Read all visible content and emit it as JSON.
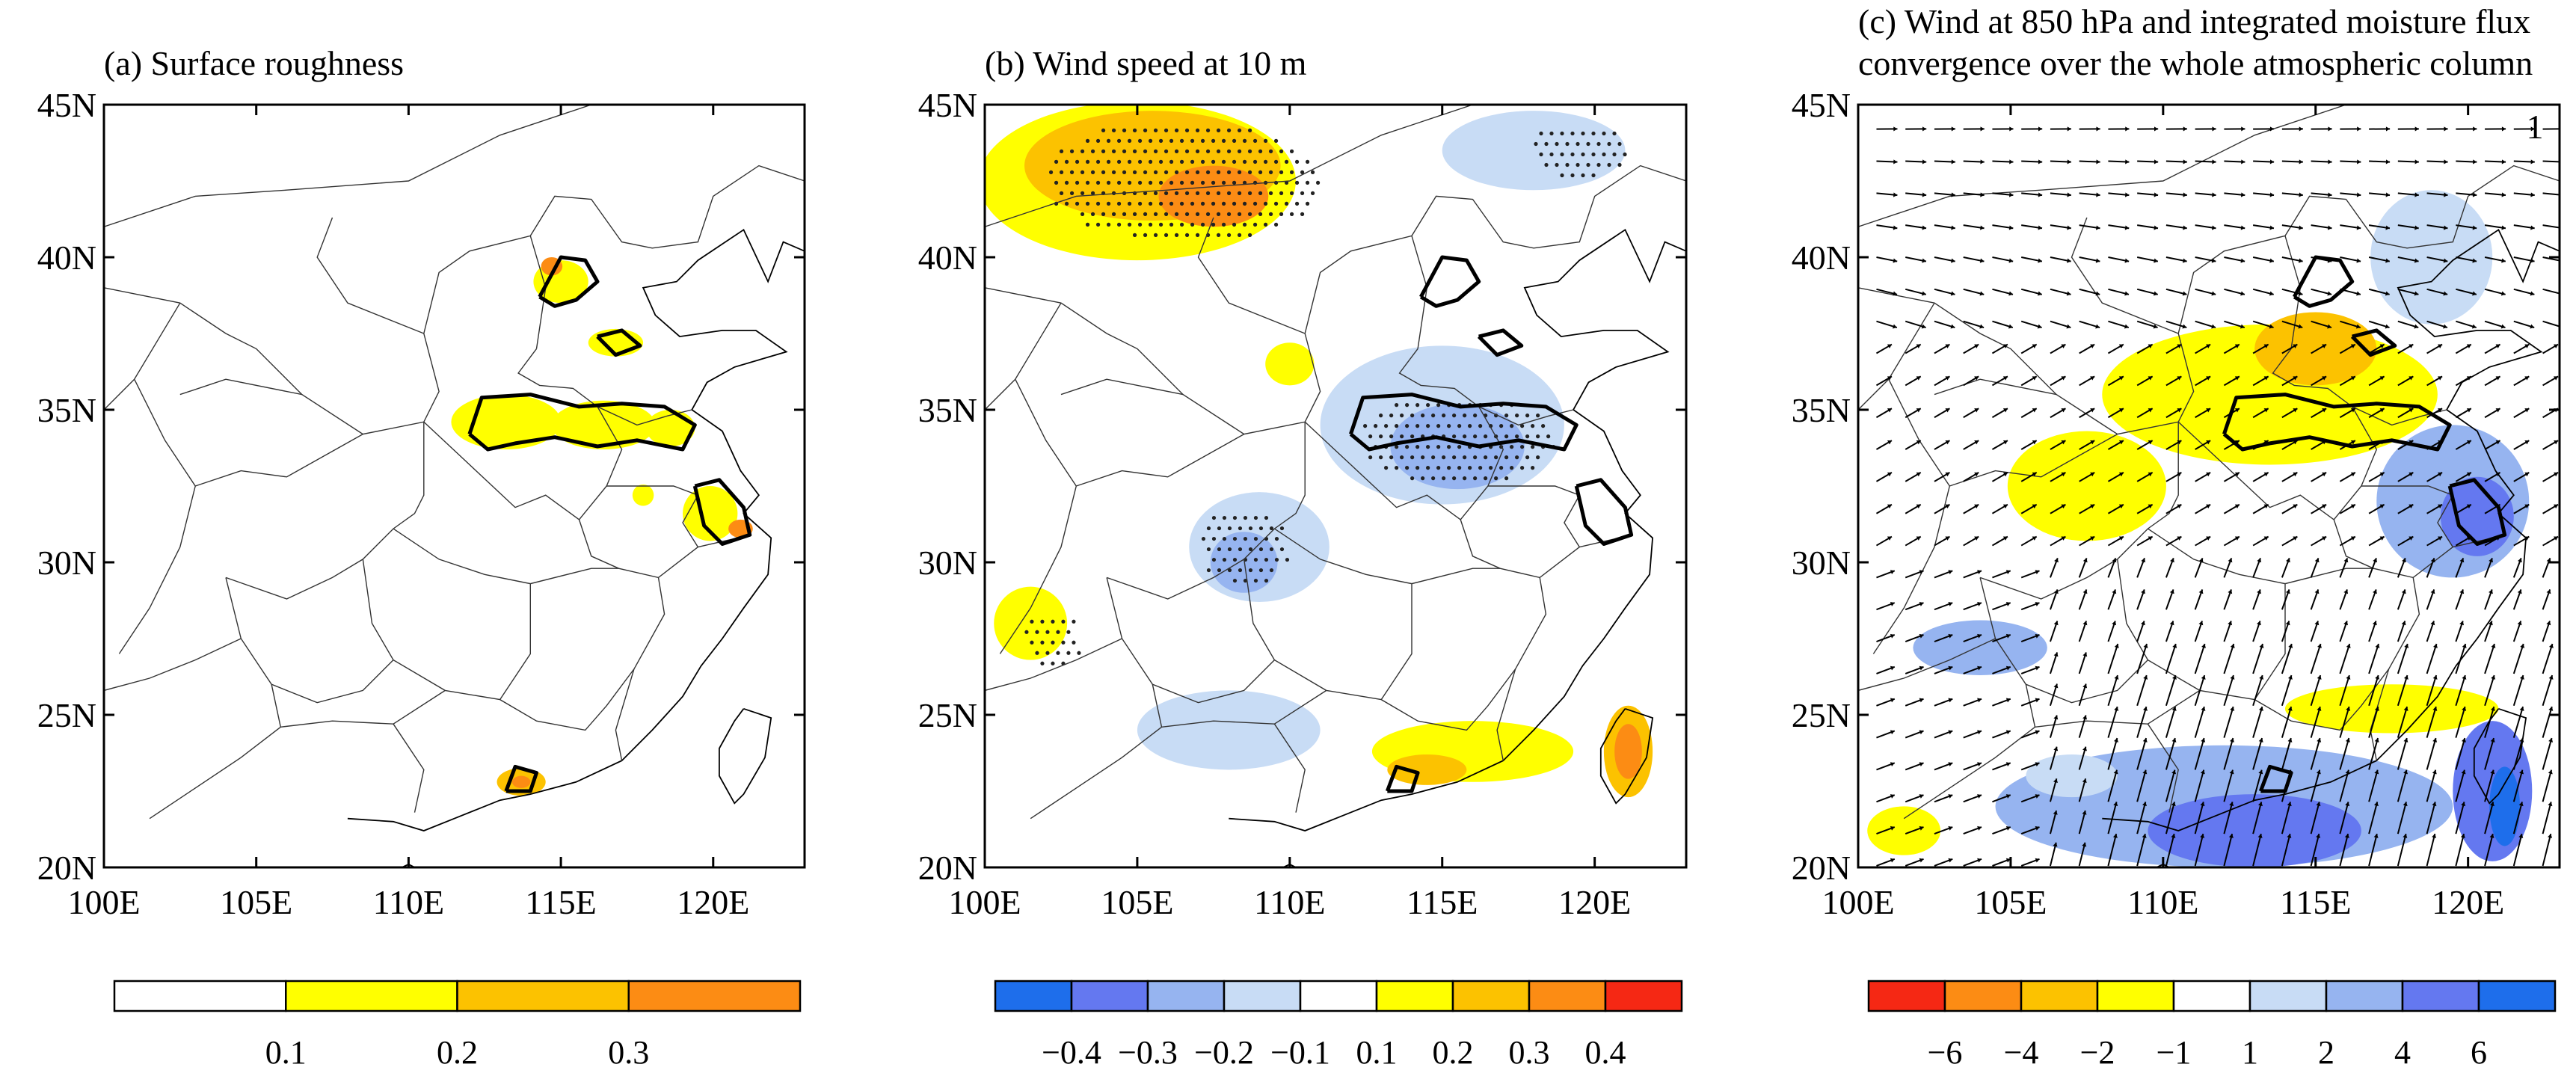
{
  "chart_data": [
    {
      "panel": "a",
      "type": "heatmap",
      "title": "(a) Surface roughness",
      "xlim": [
        100,
        123
      ],
      "ylim": [
        20,
        45
      ],
      "xticks": [
        "100E",
        "105E",
        "110E",
        "115E",
        "120E"
      ],
      "yticks": [
        "20N",
        "25N",
        "30N",
        "35N",
        "40N",
        "45N"
      ],
      "colorbar": {
        "labels": [
          "0.1",
          "0.2",
          "0.3"
        ],
        "levels": [
          0.1,
          0.2,
          0.3
        ],
        "colors": [
          "#ffffff",
          "#ffff00",
          "#fcc200",
          "#fc8c14"
        ]
      },
      "regions": [
        {
          "lon": 115,
          "lat": 39.2,
          "rx": 0.9,
          "ry": 0.7,
          "level": 1
        },
        {
          "lon": 114.7,
          "lat": 39.7,
          "rx": 0.35,
          "ry": 0.3,
          "level": 3
        },
        {
          "lon": 116.8,
          "lat": 37.2,
          "rx": 0.9,
          "ry": 0.45,
          "level": 1
        },
        {
          "lon": 113.2,
          "lat": 34.6,
          "rx": 1.8,
          "ry": 0.9,
          "level": 1
        },
        {
          "lon": 116.4,
          "lat": 34.5,
          "rx": 1.7,
          "ry": 0.8,
          "level": 1
        },
        {
          "lon": 118.6,
          "lat": 34.4,
          "rx": 0.8,
          "ry": 0.6,
          "level": 1
        },
        {
          "lon": 119.9,
          "lat": 31.6,
          "rx": 0.9,
          "ry": 0.9,
          "level": 1
        },
        {
          "lon": 120.9,
          "lat": 31.1,
          "rx": 0.4,
          "ry": 0.3,
          "level": 3
        },
        {
          "lon": 117.7,
          "lat": 32.2,
          "rx": 0.35,
          "ry": 0.35,
          "level": 1
        },
        {
          "lon": 113.7,
          "lat": 22.8,
          "rx": 0.8,
          "ry": 0.45,
          "level": 2
        },
        {
          "lon": 113.7,
          "lat": 22.8,
          "rx": 0.3,
          "ry": 0.2,
          "level": 3
        }
      ]
    },
    {
      "panel": "b",
      "type": "heatmap",
      "title": "(b) Wind speed at 10 m",
      "xlim": [
        100,
        123
      ],
      "ylim": [
        20,
        45
      ],
      "xticks": [
        "100E",
        "105E",
        "110E",
        "115E",
        "120E"
      ],
      "yticks": [
        "20N",
        "25N",
        "30N",
        "35N",
        "40N",
        "45N"
      ],
      "colorbar": {
        "labels": [
          "−0.4",
          "−0.3",
          "−0.2",
          "−0.1",
          "0.1",
          "0.2",
          "0.3",
          "0.4"
        ],
        "levels": [
          -0.4,
          -0.3,
          -0.2,
          -0.1,
          0.1,
          0.2,
          0.3,
          0.4
        ],
        "colors": [
          "#1e6eeb",
          "#6478f0",
          "#96b4f0",
          "#c8dcf5",
          "#ffffff",
          "#ffff00",
          "#fcc200",
          "#fc8c14",
          "#f52814"
        ]
      },
      "regions": [
        {
          "lon": 105,
          "lat": 42.5,
          "rx": 5.2,
          "ry": 2.6,
          "level": 1
        },
        {
          "lon": 105.5,
          "lat": 43,
          "rx": 4.2,
          "ry": 1.8,
          "level": 2
        },
        {
          "lon": 107.5,
          "lat": 42,
          "rx": 1.8,
          "ry": 1.0,
          "level": 3
        },
        {
          "lon": 118,
          "lat": 43.5,
          "rx": 3.0,
          "ry": 1.3,
          "level": -1
        },
        {
          "lon": 115,
          "lat": 34.5,
          "rx": 4.0,
          "ry": 2.6,
          "level": -1
        },
        {
          "lon": 115.5,
          "lat": 33.8,
          "rx": 2.2,
          "ry": 1.4,
          "level": -2
        },
        {
          "lon": 109,
          "lat": 30.5,
          "rx": 2.3,
          "ry": 1.8,
          "level": -1
        },
        {
          "lon": 108.5,
          "lat": 30,
          "rx": 1.1,
          "ry": 1.0,
          "level": -2
        },
        {
          "lon": 108,
          "lat": 24.5,
          "rx": 3.0,
          "ry": 1.3,
          "level": -1
        },
        {
          "lon": 116,
          "lat": 23.8,
          "rx": 3.3,
          "ry": 1.0,
          "level": 1
        },
        {
          "lon": 114.5,
          "lat": 23.2,
          "rx": 1.3,
          "ry": 0.5,
          "level": 2
        },
        {
          "lon": 121.1,
          "lat": 23.8,
          "rx": 0.8,
          "ry": 1.5,
          "level": 2
        },
        {
          "lon": 121.1,
          "lat": 23.8,
          "rx": 0.45,
          "ry": 0.9,
          "level": 3
        },
        {
          "lon": 101.5,
          "lat": 28,
          "rx": 1.2,
          "ry": 1.2,
          "level": 1
        },
        {
          "lon": 110,
          "lat": 36.5,
          "rx": 0.8,
          "ry": 0.7,
          "level": 1
        }
      ],
      "stipple": [
        {
          "lon": 106.5,
          "lat": 42.5,
          "rx": 4.5,
          "ry": 2.0
        },
        {
          "lon": 115.5,
          "lat": 34,
          "rx": 3.2,
          "ry": 1.5
        },
        {
          "lon": 108.5,
          "lat": 30.5,
          "rx": 1.5,
          "ry": 1.3
        },
        {
          "lon": 102.2,
          "lat": 27.5,
          "rx": 1.0,
          "ry": 0.9
        },
        {
          "lon": 119.5,
          "lat": 43.5,
          "rx": 1.6,
          "ry": 0.9
        }
      ]
    },
    {
      "panel": "c",
      "type": "heatmap",
      "title_line1": "(c) Wind at 850 hPa and integrated moisture flux",
      "title_line2": "convergence over the whole atmospheric column",
      "vector_ref_label": "1",
      "xlim": [
        100,
        123
      ],
      "ylim": [
        20,
        45
      ],
      "xticks": [
        "100E",
        "105E",
        "110E",
        "115E",
        "120E"
      ],
      "yticks": [
        "20N",
        "25N",
        "30N",
        "35N",
        "40N",
        "45N"
      ],
      "colorbar": {
        "labels": [
          "−6",
          "−4",
          "−2",
          "−1",
          "1",
          "2",
          "4",
          "6"
        ],
        "levels": [
          -6,
          -4,
          -2,
          -1,
          1,
          2,
          4,
          6
        ],
        "colors": [
          "#f52814",
          "#fc8c14",
          "#fcc200",
          "#ffff00",
          "#ffffff",
          "#c8dcf5",
          "#96b4f0",
          "#6478f0",
          "#1e6eeb"
        ]
      },
      "regions": [
        {
          "lon": 113.5,
          "lat": 35.5,
          "rx": 5.5,
          "ry": 2.3,
          "level": -1
        },
        {
          "lon": 115,
          "lat": 37,
          "rx": 2.0,
          "ry": 1.2,
          "level": -2
        },
        {
          "lon": 107.5,
          "lat": 32.5,
          "rx": 2.6,
          "ry": 1.8,
          "level": -1
        },
        {
          "lon": 118.8,
          "lat": 40,
          "rx": 2.0,
          "ry": 2.2,
          "level": 1
        },
        {
          "lon": 119.5,
          "lat": 32,
          "rx": 2.5,
          "ry": 2.5,
          "level": 2
        },
        {
          "lon": 120.3,
          "lat": 31.5,
          "rx": 1.2,
          "ry": 1.3,
          "level": 3
        },
        {
          "lon": 112,
          "lat": 22,
          "rx": 7.5,
          "ry": 2.0,
          "level": 2
        },
        {
          "lon": 113,
          "lat": 21.2,
          "rx": 3.5,
          "ry": 1.2,
          "level": 3
        },
        {
          "lon": 120.8,
          "lat": 22.5,
          "rx": 1.3,
          "ry": 2.3,
          "level": 3
        },
        {
          "lon": 121.2,
          "lat": 22,
          "rx": 0.5,
          "ry": 1.3,
          "level": 4
        },
        {
          "lon": 118.3,
          "lat": 25.2,
          "rx": 1.6,
          "ry": 0.6,
          "level": -2
        },
        {
          "lon": 118.5,
          "lat": 24.9,
          "rx": 0.7,
          "ry": 0.35,
          "level": -3
        },
        {
          "lon": 117.5,
          "lat": 25.2,
          "rx": 3.5,
          "ry": 0.8,
          "level": -1
        },
        {
          "lon": 104,
          "lat": 27.2,
          "rx": 2.2,
          "ry": 0.9,
          "level": 2
        },
        {
          "lon": 101.5,
          "lat": 21.2,
          "rx": 1.2,
          "ry": 0.8,
          "level": -1
        },
        {
          "lon": 107,
          "lat": 23,
          "rx": 1.5,
          "ry": 0.7,
          "level": 1
        }
      ]
    }
  ]
}
